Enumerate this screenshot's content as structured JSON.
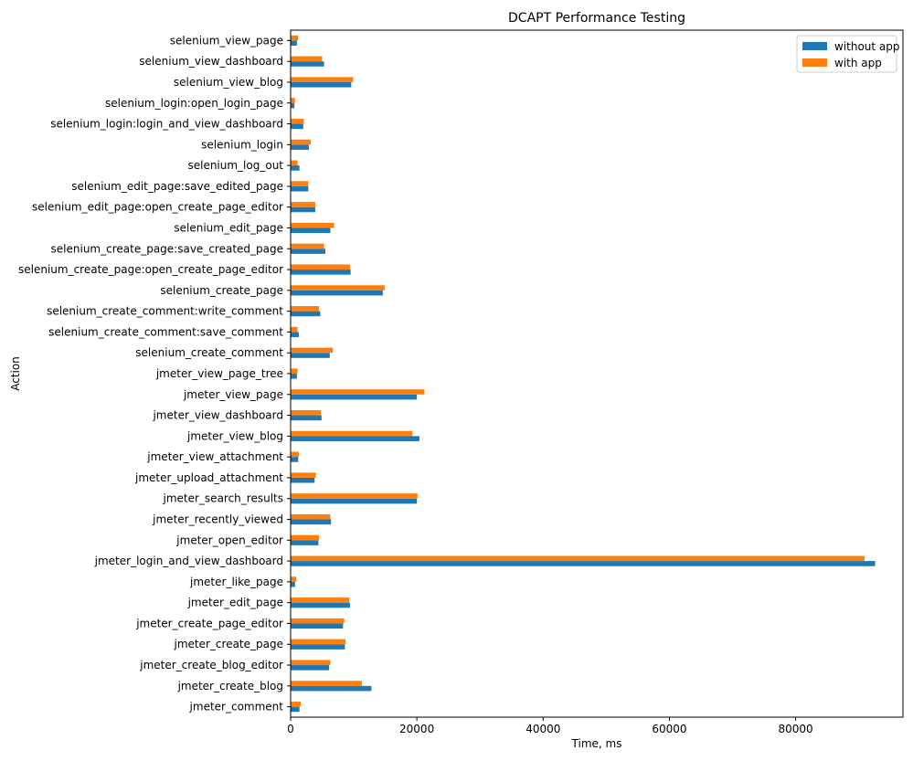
{
  "chart_data": {
    "type": "bar",
    "orientation": "horizontal",
    "title": "DCAPT Performance Testing",
    "xlabel": "Time, ms",
    "ylabel": "Action",
    "xlim": [
      0,
      97000
    ],
    "xticks": [
      0,
      20000,
      40000,
      60000,
      80000
    ],
    "grid": false,
    "legend_position": "top-right",
    "categories": [
      "jmeter_comment",
      "jmeter_create_blog",
      "jmeter_create_blog_editor",
      "jmeter_create_page",
      "jmeter_create_page_editor",
      "jmeter_edit_page",
      "jmeter_like_page",
      "jmeter_login_and_view_dashboard",
      "jmeter_open_editor",
      "jmeter_recently_viewed",
      "jmeter_search_results",
      "jmeter_upload_attachment",
      "jmeter_view_attachment",
      "jmeter_view_blog",
      "jmeter_view_dashboard",
      "jmeter_view_page",
      "jmeter_view_page_tree",
      "selenium_create_comment",
      "selenium_create_comment:save_comment",
      "selenium_create_comment:write_comment",
      "selenium_create_page",
      "selenium_create_page:open_create_page_editor",
      "selenium_create_page:save_created_page",
      "selenium_edit_page",
      "selenium_edit_page:open_create_page_editor",
      "selenium_edit_page:save_edited_page",
      "selenium_log_out",
      "selenium_login",
      "selenium_login:login_and_view_dashboard",
      "selenium_login:open_login_page",
      "selenium_view_blog",
      "selenium_view_dashboard",
      "selenium_view_page"
    ],
    "series": [
      {
        "name": "without app",
        "color": "#1f77b4",
        "values": [
          1400,
          12800,
          6100,
          8600,
          8300,
          9400,
          700,
          92600,
          4400,
          6400,
          20000,
          3800,
          1200,
          20400,
          4900,
          20000,
          1000,
          6200,
          1300,
          4700,
          14600,
          9500,
          5500,
          6300,
          3900,
          2800,
          1400,
          2900,
          2000,
          600,
          9600,
          5300,
          1000
        ]
      },
      {
        "name": "with app",
        "color": "#ff7f0e",
        "values": [
          1600,
          11300,
          6300,
          8700,
          8500,
          9300,
          900,
          90900,
          4500,
          6300,
          20100,
          4000,
          1300,
          19300,
          4800,
          21200,
          1100,
          6700,
          1100,
          4500,
          14900,
          9400,
          5300,
          6900,
          3900,
          2800,
          1100,
          3200,
          2100,
          700,
          9900,
          5000,
          1200
        ]
      }
    ]
  }
}
